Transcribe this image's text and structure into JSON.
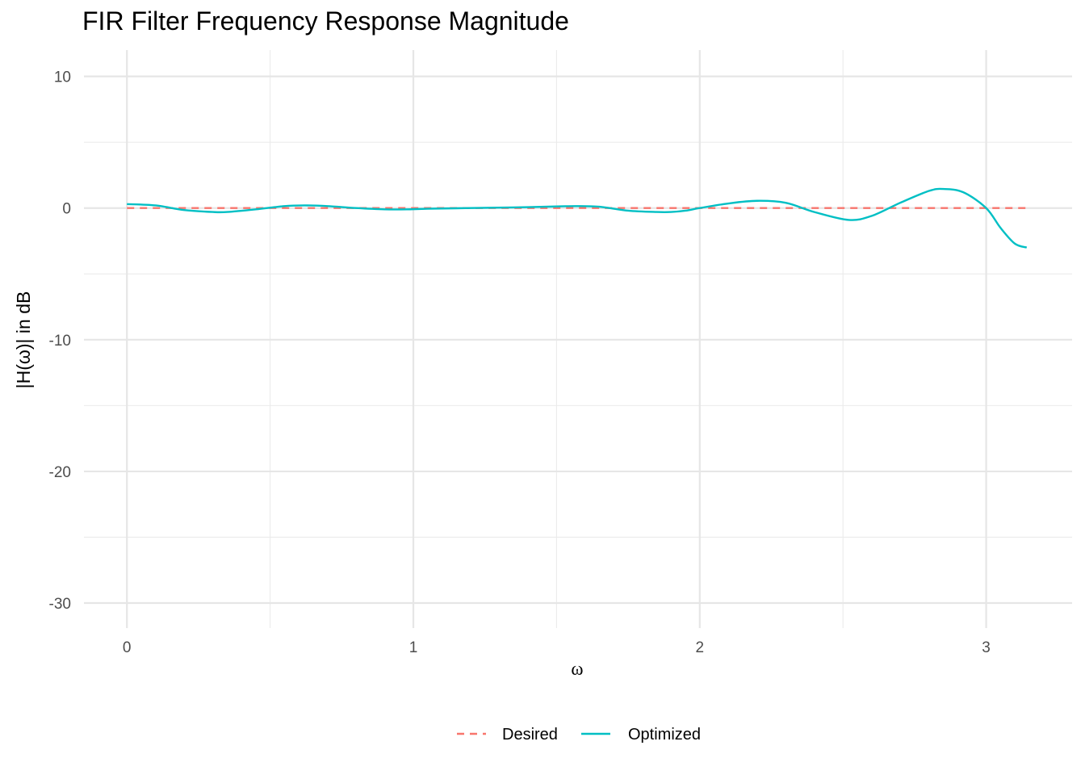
{
  "chart_data": {
    "type": "line",
    "title": "FIR Filter Frequency Response Magnitude",
    "xlabel": "ω",
    "ylabel": "|H(ω)| in dB",
    "xlim": [
      -0.15,
      3.3
    ],
    "ylim": [
      -31.9,
      12.0
    ],
    "x_ticks": [
      0,
      1,
      2,
      3
    ],
    "x_tick_labels": [
      "0",
      "1",
      "2",
      "3"
    ],
    "y_ticks": [
      10,
      0,
      -10,
      -20,
      -30
    ],
    "y_tick_labels": [
      "10",
      "0",
      "-10",
      "-20",
      "-30"
    ],
    "grid": true,
    "legend_position": "bottom",
    "series": [
      {
        "name": "Desired",
        "color": "#F8766D",
        "style": "dashed",
        "x": [
          0,
          3.1416
        ],
        "y": [
          0,
          0
        ]
      },
      {
        "name": "Optimized",
        "color": "#00BFC4",
        "style": "solid",
        "x": [
          0,
          0.1,
          0.2,
          0.3,
          0.35,
          0.45,
          0.55,
          0.62,
          0.7,
          0.8,
          0.9,
          0.98,
          1.05,
          1.2,
          1.35,
          1.5,
          1.57,
          1.65,
          1.75,
          1.85,
          1.9,
          1.95,
          2.0,
          2.1,
          2.2,
          2.3,
          2.4,
          2.52,
          2.6,
          2.7,
          2.8,
          2.85,
          2.92,
          3.0,
          3.05,
          3.1,
          3.1416
        ],
        "y": [
          0.3,
          0.2,
          -0.15,
          -0.3,
          -0.3,
          -0.1,
          0.15,
          0.2,
          0.15,
          0.0,
          -0.1,
          -0.1,
          -0.05,
          0.0,
          0.05,
          0.12,
          0.15,
          0.1,
          -0.2,
          -0.3,
          -0.3,
          -0.2,
          0.0,
          0.35,
          0.55,
          0.4,
          -0.3,
          -0.9,
          -0.6,
          0.4,
          1.3,
          1.45,
          1.2,
          0.0,
          -1.5,
          -2.7,
          -3.0
        ]
      }
    ]
  }
}
